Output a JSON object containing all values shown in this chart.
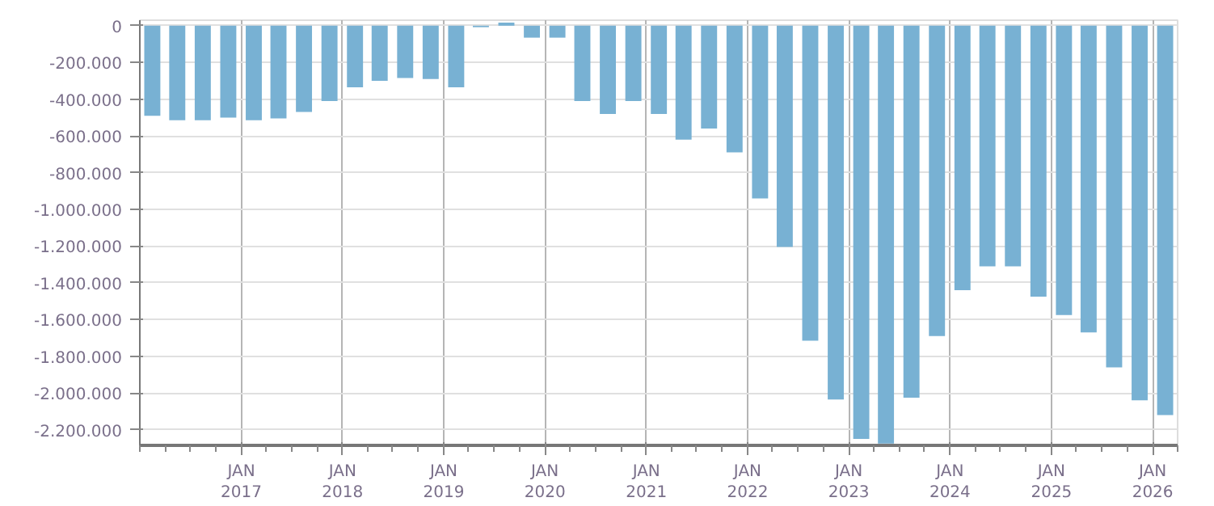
{
  "chart_data": {
    "type": "bar",
    "x": [
      "2016-02-15",
      "2016-05-15",
      "2016-08-15",
      "2016-11-15",
      "2017-02-15",
      "2017-05-15",
      "2017-08-15",
      "2017-11-15",
      "2018-02-15",
      "2018-05-15",
      "2018-08-15",
      "2018-11-15",
      "2019-02-15",
      "2019-05-15",
      "2019-08-15",
      "2019-11-15",
      "2020-02-15",
      "2020-05-15",
      "2020-08-15",
      "2020-11-15",
      "2021-02-15",
      "2021-05-15",
      "2021-08-15",
      "2021-11-15",
      "2022-02-15",
      "2022-05-15",
      "2022-08-15",
      "2022-11-15",
      "2023-02-15",
      "2023-05-15",
      "2023-08-15",
      "2023-11-15",
      "2024-02-15",
      "2024-05-15",
      "2024-08-15",
      "2024-11-15",
      "2025-02-15",
      "2025-05-15",
      "2025-08-15",
      "2025-11-15",
      "2026-02-15"
    ],
    "values": [
      -490000,
      -515000,
      -515000,
      -500000,
      -515000,
      -505000,
      -470000,
      -410000,
      -335000,
      -300000,
      -285000,
      -290000,
      -335000,
      -8000,
      17000,
      -65000,
      -65000,
      -410000,
      -480000,
      -410000,
      -480000,
      -620000,
      -560000,
      -690000,
      -940000,
      -1205000,
      -1715000,
      -2035000,
      -2250000,
      -2275000,
      -2025000,
      -1690000,
      -1440000,
      -1310000,
      -1310000,
      -1475000,
      -1575000,
      -1670000,
      -1860000,
      -2040000,
      -2120000
    ],
    "color": "#78b1d3",
    "xlim": [
      "2016-01-01",
      "2026-04-01"
    ],
    "xticks": [
      {
        "value": "2017-01-01",
        "label": "JAN\n2017"
      },
      {
        "value": "2018-01-01",
        "label": "JAN\n2018"
      },
      {
        "value": "2019-01-01",
        "label": "JAN\n2019"
      },
      {
        "value": "2020-01-01",
        "label": "JAN\n2020"
      },
      {
        "value": "2021-01-01",
        "label": "JAN\n2021"
      },
      {
        "value": "2022-01-01",
        "label": "JAN\n2022"
      },
      {
        "value": "2023-01-01",
        "label": "JAN\n2023"
      },
      {
        "value": "2024-01-01",
        "label": "JAN\n2024"
      },
      {
        "value": "2025-01-01",
        "label": "JAN\n2025"
      },
      {
        "value": "2026-01-01",
        "label": "JAN\n2026"
      }
    ],
    "ylim": [
      -2285000,
      30000
    ],
    "yticks": [
      0,
      {
        "value": -200000,
        "label": "-200.000"
      },
      {
        "value": -400000,
        "label": "-400.000"
      },
      {
        "value": -600000,
        "label": "-600.000"
      },
      {
        "value": -800000,
        "label": "-800.000"
      },
      {
        "value": -1000000,
        "label": "-1.000.000"
      },
      {
        "value": -1200000,
        "label": "-1.200.000"
      },
      {
        "value": -1400000,
        "label": "-1.400.000"
      },
      {
        "value": -1600000,
        "label": "-1.600.000"
      },
      {
        "value": -1800000,
        "label": "-1.800.000"
      },
      {
        "value": -2000000,
        "label": "-2.000.000"
      },
      {
        "value": -2200000,
        "label": "-2.200.000"
      }
    ],
    "grid": true
  }
}
